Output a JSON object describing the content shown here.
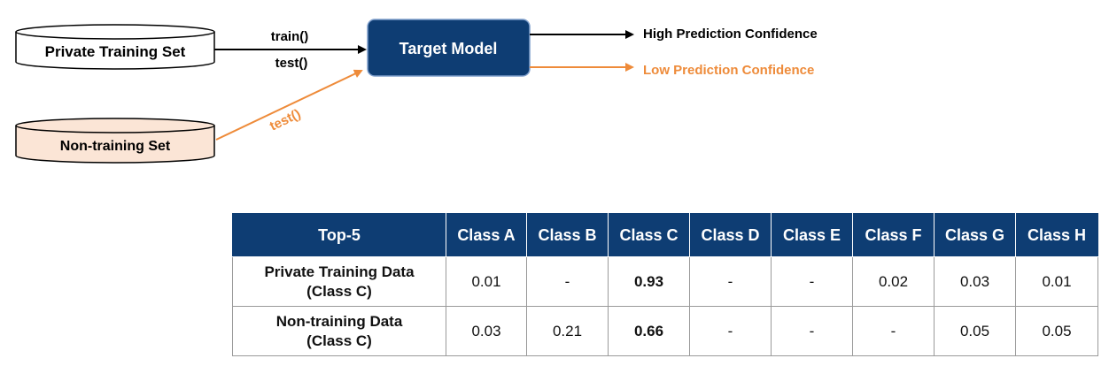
{
  "diagram": {
    "private_training_set": "Private Training Set",
    "non_training_set": "Non-training Set",
    "target_model": "Target Model",
    "train_call": "train()",
    "test_call_private": "test()",
    "test_call_non_training": "test()",
    "high_confidence": "High Prediction Confidence",
    "low_confidence": "Low Prediction Confidence"
  },
  "table": {
    "corner": "Top-5",
    "columns": [
      "Class A",
      "Class B",
      "Class C",
      "Class D",
      "Class E",
      "Class F",
      "Class G",
      "Class H"
    ],
    "rows": [
      {
        "label_line1": "Private Training Data",
        "label_line2": "(Class C)",
        "values": [
          "0.01",
          "-",
          "0.93",
          "-",
          "-",
          "0.02",
          "0.03",
          "0.01"
        ]
      },
      {
        "label_line1": "Non-training Data",
        "label_line2": "(Class C)",
        "values": [
          "0.03",
          "0.21",
          "0.66",
          "-",
          "-",
          "-",
          "0.05",
          "0.05"
        ]
      }
    ]
  },
  "colors": {
    "navy": "#0e3d73",
    "orange": "#ee8b3a",
    "peach_fill": "#fbe5d6",
    "black": "#000000"
  }
}
